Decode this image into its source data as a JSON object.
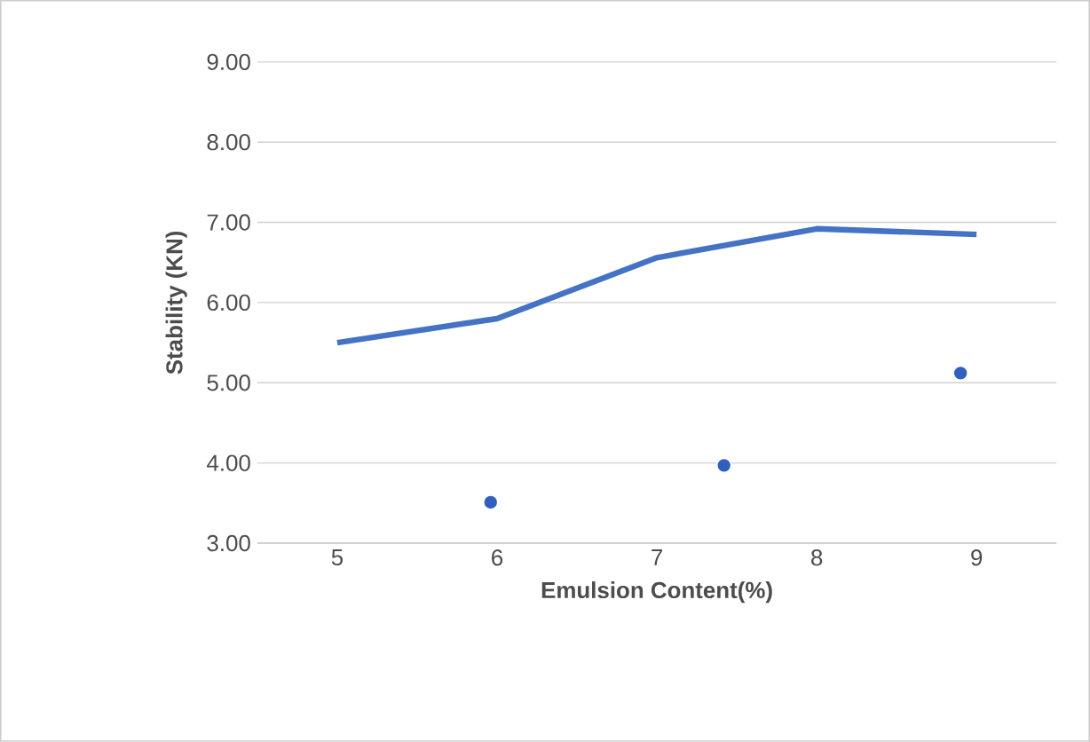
{
  "chart_data": {
    "type": "line",
    "xlabel": "Emulsion Content(%)",
    "ylabel": "Stability (KN)",
    "xlim": [
      4.5,
      9.5
    ],
    "xticks": [
      5,
      6,
      7,
      8,
      9
    ],
    "ylim": [
      3,
      9
    ],
    "yticks": [
      {
        "value": 3,
        "label": "3.00"
      },
      {
        "value": 4,
        "label": "4.00"
      },
      {
        "value": 5,
        "label": "5.00"
      },
      {
        "value": 6,
        "label": "6.00"
      },
      {
        "value": 7,
        "label": "7.00"
      },
      {
        "value": 8,
        "label": "8.00"
      },
      {
        "value": 9,
        "label": "9.00"
      }
    ],
    "grid": "y",
    "series": [
      {
        "color": "#4472c4",
        "x": [
          5,
          6,
          7,
          8,
          9
        ],
        "values": [
          5.5,
          5.8,
          6.56,
          6.92,
          6.85
        ]
      },
      {
        "type": "scatter",
        "color": "#2f5fbf",
        "marker": "circle",
        "x": [
          5.96,
          7.42,
          8.9
        ],
        "values": [
          3.51,
          3.97,
          5.12
        ]
      }
    ]
  }
}
